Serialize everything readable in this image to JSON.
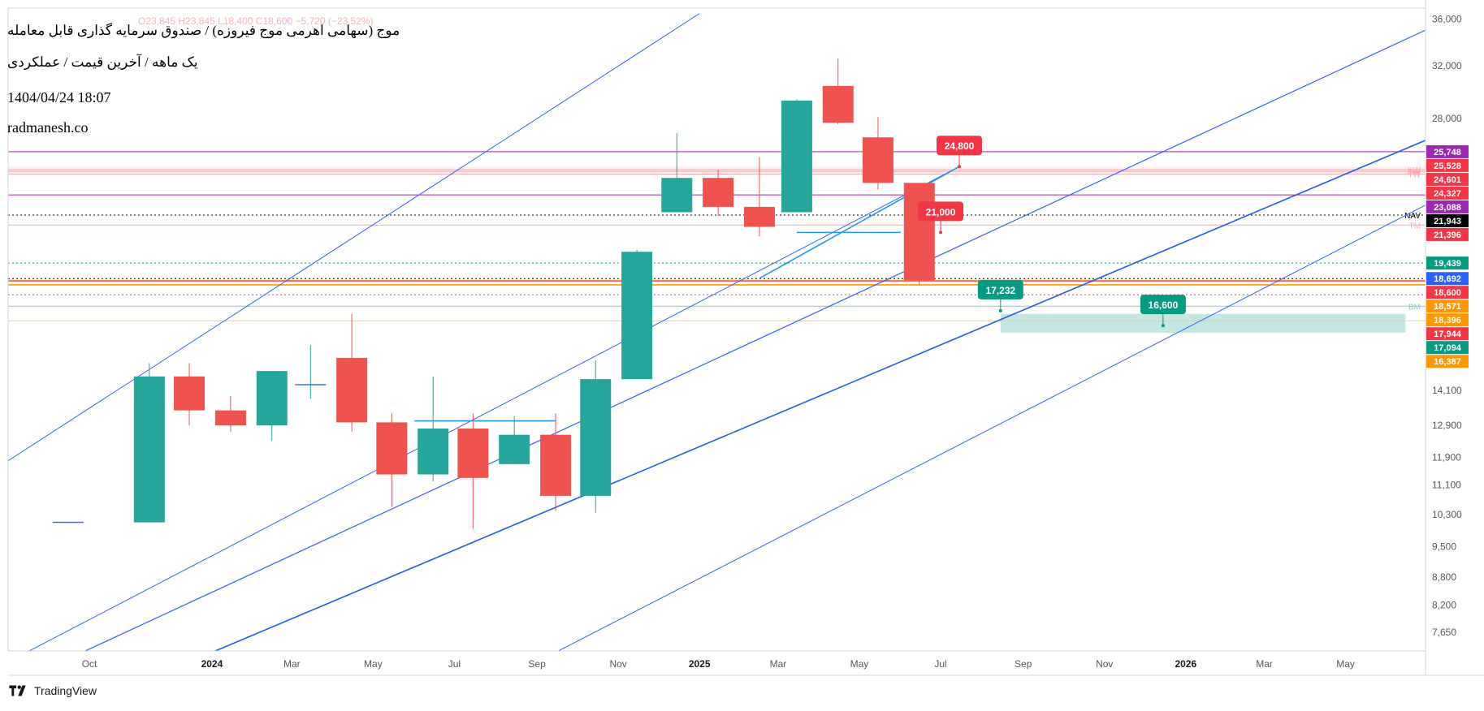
{
  "header": {
    "title": "موج (سهامی اهرمی موج فیروزه) / صندوق سرمایه گذاری قابل معامله",
    "subtitle": "یک ماهه / آخرین قیمت / عملکردی",
    "datetime": "1404/04/24 18:07",
    "site": "radmanesh.co",
    "ohlc_faint": "O23,845 H23,845 L18,400 C18,600 −5,720 (−23.52%)"
  },
  "footer": {
    "brand": "TradingView"
  },
  "colors": {
    "up": "#26a69a",
    "down": "#ef5350",
    "channel": "#2962ff",
    "channel_light": "#5b8def",
    "orange": "#ff9800",
    "purple": "#9c27b0",
    "red_tag": "#f23645",
    "green_tag": "#089981",
    "black": "#000000",
    "blue_tag": "#2962ff",
    "bm_zone": "#b2dfdb",
    "kw_zone": "#fde2e4"
  },
  "chart_data": {
    "type": "candlestick",
    "scale": "log",
    "y_range": [
      7300,
      37000
    ],
    "x_range": [
      "2023-08",
      "2026-06"
    ],
    "x_tick_labels": [
      {
        "label": "Oct",
        "date": "2023-10"
      },
      {
        "label": "2024",
        "date": "2024-01",
        "bold": true
      },
      {
        "label": "Mar",
        "date": "2024-03"
      },
      {
        "label": "May",
        "date": "2024-05"
      },
      {
        "label": "Jul",
        "date": "2024-07"
      },
      {
        "label": "Sep",
        "date": "2024-09"
      },
      {
        "label": "Nov",
        "date": "2024-11"
      },
      {
        "label": "2025",
        "date": "2025-01",
        "bold": true
      },
      {
        "label": "Mar",
        "date": "2025-03"
      },
      {
        "label": "May",
        "date": "2025-05"
      },
      {
        "label": "Jul",
        "date": "2025-07"
      },
      {
        "label": "Sep",
        "date": "2025-09"
      },
      {
        "label": "Nov",
        "date": "2025-11"
      },
      {
        "label": "2026",
        "date": "2026-01",
        "bold": true
      },
      {
        "label": "Mar",
        "date": "2026-03"
      },
      {
        "label": "May",
        "date": "2026-05"
      }
    ],
    "y_tick_labels": [
      {
        "label": "36,000",
        "value": 36000
      },
      {
        "label": "32,000",
        "value": 32000
      },
      {
        "label": "28,000",
        "value": 28000
      },
      {
        "label": "14,100",
        "value": 14100
      },
      {
        "label": "12,900",
        "value": 12900
      },
      {
        "label": "11,900",
        "value": 11900
      },
      {
        "label": "11,100",
        "value": 11100
      },
      {
        "label": "10,300",
        "value": 10300
      },
      {
        "label": "9,500",
        "value": 9500
      },
      {
        "label": "8,800",
        "value": 8800
      },
      {
        "label": "8,200",
        "value": 8200
      },
      {
        "label": "7,650",
        "value": 7650
      }
    ],
    "candles": [
      {
        "date": "2023-09",
        "o": 10100,
        "h": 10100,
        "l": 10100,
        "c": 10100
      },
      {
        "date": "2023-11",
        "o": 10100,
        "h": 15100,
        "l": 10100,
        "c": 14600
      },
      {
        "date": "2023-12",
        "o": 14600,
        "h": 15100,
        "l": 12900,
        "c": 13400
      },
      {
        "date": "2024-01",
        "o": 13400,
        "h": 13900,
        "l": 12700,
        "c": 12900
      },
      {
        "date": "2024-02",
        "o": 12900,
        "h": 14800,
        "l": 12400,
        "c": 14800
      },
      {
        "date": "2024-03",
        "o": 14300,
        "h": 15800,
        "l": 13800,
        "c": 14300
      },
      {
        "date": "2024-04",
        "o": 15300,
        "h": 17100,
        "l": 12700,
        "c": 13000
      },
      {
        "date": "2024-05",
        "o": 13000,
        "h": 13300,
        "l": 10500,
        "c": 11400
      },
      {
        "date": "2024-06",
        "o": 11400,
        "h": 14600,
        "l": 11200,
        "c": 12800
      },
      {
        "date": "2024-07",
        "o": 12800,
        "h": 13300,
        "l": 9950,
        "c": 11300
      },
      {
        "date": "2024-08",
        "o": 11700,
        "h": 13200,
        "l": 11700,
        "c": 12600
      },
      {
        "date": "2024-09",
        "o": 12600,
        "h": 13300,
        "l": 10400,
        "c": 10800
      },
      {
        "date": "2024-10",
        "o": 10800,
        "h": 15200,
        "l": 10350,
        "c": 14500
      },
      {
        "date": "2024-11",
        "o": 14500,
        "h": 20100,
        "l": 14500,
        "c": 20000
      },
      {
        "date": "2024-12",
        "o": 22100,
        "h": 27000,
        "l": 22100,
        "c": 24100
      },
      {
        "date": "2025-01",
        "o": 24100,
        "h": 24600,
        "l": 21900,
        "c": 22400
      },
      {
        "date": "2025-02",
        "o": 22400,
        "h": 25400,
        "l": 20800,
        "c": 21300
      },
      {
        "date": "2025-03",
        "o": 22100,
        "h": 29400,
        "l": 22100,
        "c": 29300
      },
      {
        "date": "2025-04",
        "o": 30400,
        "h": 32600,
        "l": 27600,
        "c": 27700
      },
      {
        "date": "2025-05",
        "o": 26700,
        "h": 28100,
        "l": 23400,
        "c": 23800
      },
      {
        "date": "2025-06",
        "o": 23800,
        "h": 23800,
        "l": 18400,
        "c": 18600
      }
    ],
    "horizontal_levels": [
      {
        "value": 25748,
        "color": "#9c27b0",
        "style": "solid"
      },
      {
        "value": 24601,
        "color": "#f7a8b0",
        "style": "solid",
        "label": "KW"
      },
      {
        "value": 24327,
        "color": "#f7a8b0",
        "style": "solid",
        "label": "TW"
      },
      {
        "value": 24500,
        "color": "#f7a8b0",
        "style": "solid",
        "label": "BW"
      },
      {
        "value": 23088,
        "color": "#9c27b0",
        "style": "solid"
      },
      {
        "value": 21943,
        "color": "#000000",
        "style": "dotted",
        "label": "NAV"
      },
      {
        "value": 21396,
        "color": "#f7a8b0",
        "style": "solid",
        "label": "TM"
      },
      {
        "value": 19439,
        "color": "#089981",
        "style": "dotted"
      },
      {
        "value": 18692,
        "color": "#000000",
        "style": "dotted"
      },
      {
        "value": 18600,
        "color": "#ff9800",
        "style": "solid"
      },
      {
        "value": 18571,
        "color": "#ef5350",
        "style": "solid"
      },
      {
        "value": 18396,
        "color": "#ff9800",
        "style": "solid"
      },
      {
        "value": 17944,
        "color": "#f23645",
        "style": "dotted"
      },
      {
        "value": 17432,
        "color": "#80cbc4",
        "style": "solid",
        "label": "BM"
      },
      {
        "value": 16800,
        "color": "#ffcc80",
        "style": "solid"
      }
    ],
    "price_tags": [
      {
        "text": "25,748",
        "value": 25748,
        "color": "#9c27b0"
      },
      {
        "text": "25,528",
        "value": 25528,
        "color": "#f23645"
      },
      {
        "text": "24,601",
        "value": 24601,
        "color": "#f23645"
      },
      {
        "text": "24,327",
        "value": 24327,
        "color": "#f23645"
      },
      {
        "text": "23,088",
        "value": 23088,
        "color": "#9c27b0"
      },
      {
        "text": "21,943",
        "value": 21943,
        "color": "#000000"
      },
      {
        "text": "21,396",
        "value": 21396,
        "color": "#f23645"
      },
      {
        "text": "19,439",
        "value": 19439,
        "color": "#089981"
      },
      {
        "text": "18,692",
        "value": 18692,
        "color": "#2962ff"
      },
      {
        "text": "18,600",
        "value": 18600,
        "color": "#f23645"
      },
      {
        "text": "18,571",
        "value": 18571,
        "color": "#ff9800"
      },
      {
        "text": "18,396",
        "value": 18396,
        "color": "#ff9800"
      },
      {
        "text": "17,944",
        "value": 17944,
        "color": "#f23645"
      },
      {
        "text": "17,094",
        "value": 17094,
        "color": "#089981"
      },
      {
        "text": "16,387",
        "value": 16387,
        "color": "#ff9800"
      }
    ],
    "callouts": [
      {
        "text": "24,800",
        "date": "2025-07-15",
        "value": 24800,
        "color": "#f23645"
      },
      {
        "text": "21,000",
        "date": "2025-07-01",
        "value": 21000,
        "color": "#f23645"
      },
      {
        "text": "17,232",
        "date": "2025-08-15",
        "value": 17232,
        "color": "#089981"
      },
      {
        "text": "16,600",
        "date": "2025-12-15",
        "value": 16600,
        "color": "#089981"
      }
    ],
    "zones": [
      {
        "name": "bm-zone",
        "from": "2025-08-15",
        "to": "2026-06-15",
        "low": 16300,
        "high": 17094,
        "color": "#b2dfdb"
      },
      {
        "name": "kw-zone",
        "from": "2023-08-01",
        "to": "2026-06-30",
        "low": 24327,
        "high": 24800,
        "color": "#fde8ea"
      }
    ],
    "channel_lines": [
      {
        "p1": [
          "2023-08-01",
          11800
        ],
        "p2": [
          "2025-01-01",
          36500
        ],
        "width": 1,
        "color": "#2962ff"
      },
      {
        "p1": [
          "2023-08-01",
          7100
        ],
        "p2": [
          "2025-07-15",
          24800
        ],
        "width": 1,
        "color": "#2962ff"
      },
      {
        "p1": [
          "2023-09-01",
          7000
        ],
        "p2": [
          "2026-06-30",
          35000
        ],
        "width": 1.2,
        "color": "#2962ff"
      },
      {
        "p1": [
          "2023-12-15",
          7100
        ],
        "p2": [
          "2026-06-30",
          26500
        ],
        "width": 1.6,
        "color": "#1e5ce6"
      },
      {
        "p1": [
          "2024-09-01",
          7100
        ],
        "p2": [
          "2026-06-30",
          22500
        ],
        "width": 1,
        "color": "#2962ff"
      },
      {
        "p1": [
          "2025-02-15",
          18700
        ],
        "p2": [
          "2025-07-15",
          24800
        ],
        "width": 1.6,
        "color": "#2196f3"
      }
    ],
    "flat_segments": [
      {
        "from": "2024-06-01",
        "to": "2024-09-15",
        "value": 13050,
        "color": "#2196f3"
      },
      {
        "from": "2025-03-15",
        "to": "2025-06-01",
        "value": 21000,
        "color": "#2196f3"
      }
    ]
  }
}
